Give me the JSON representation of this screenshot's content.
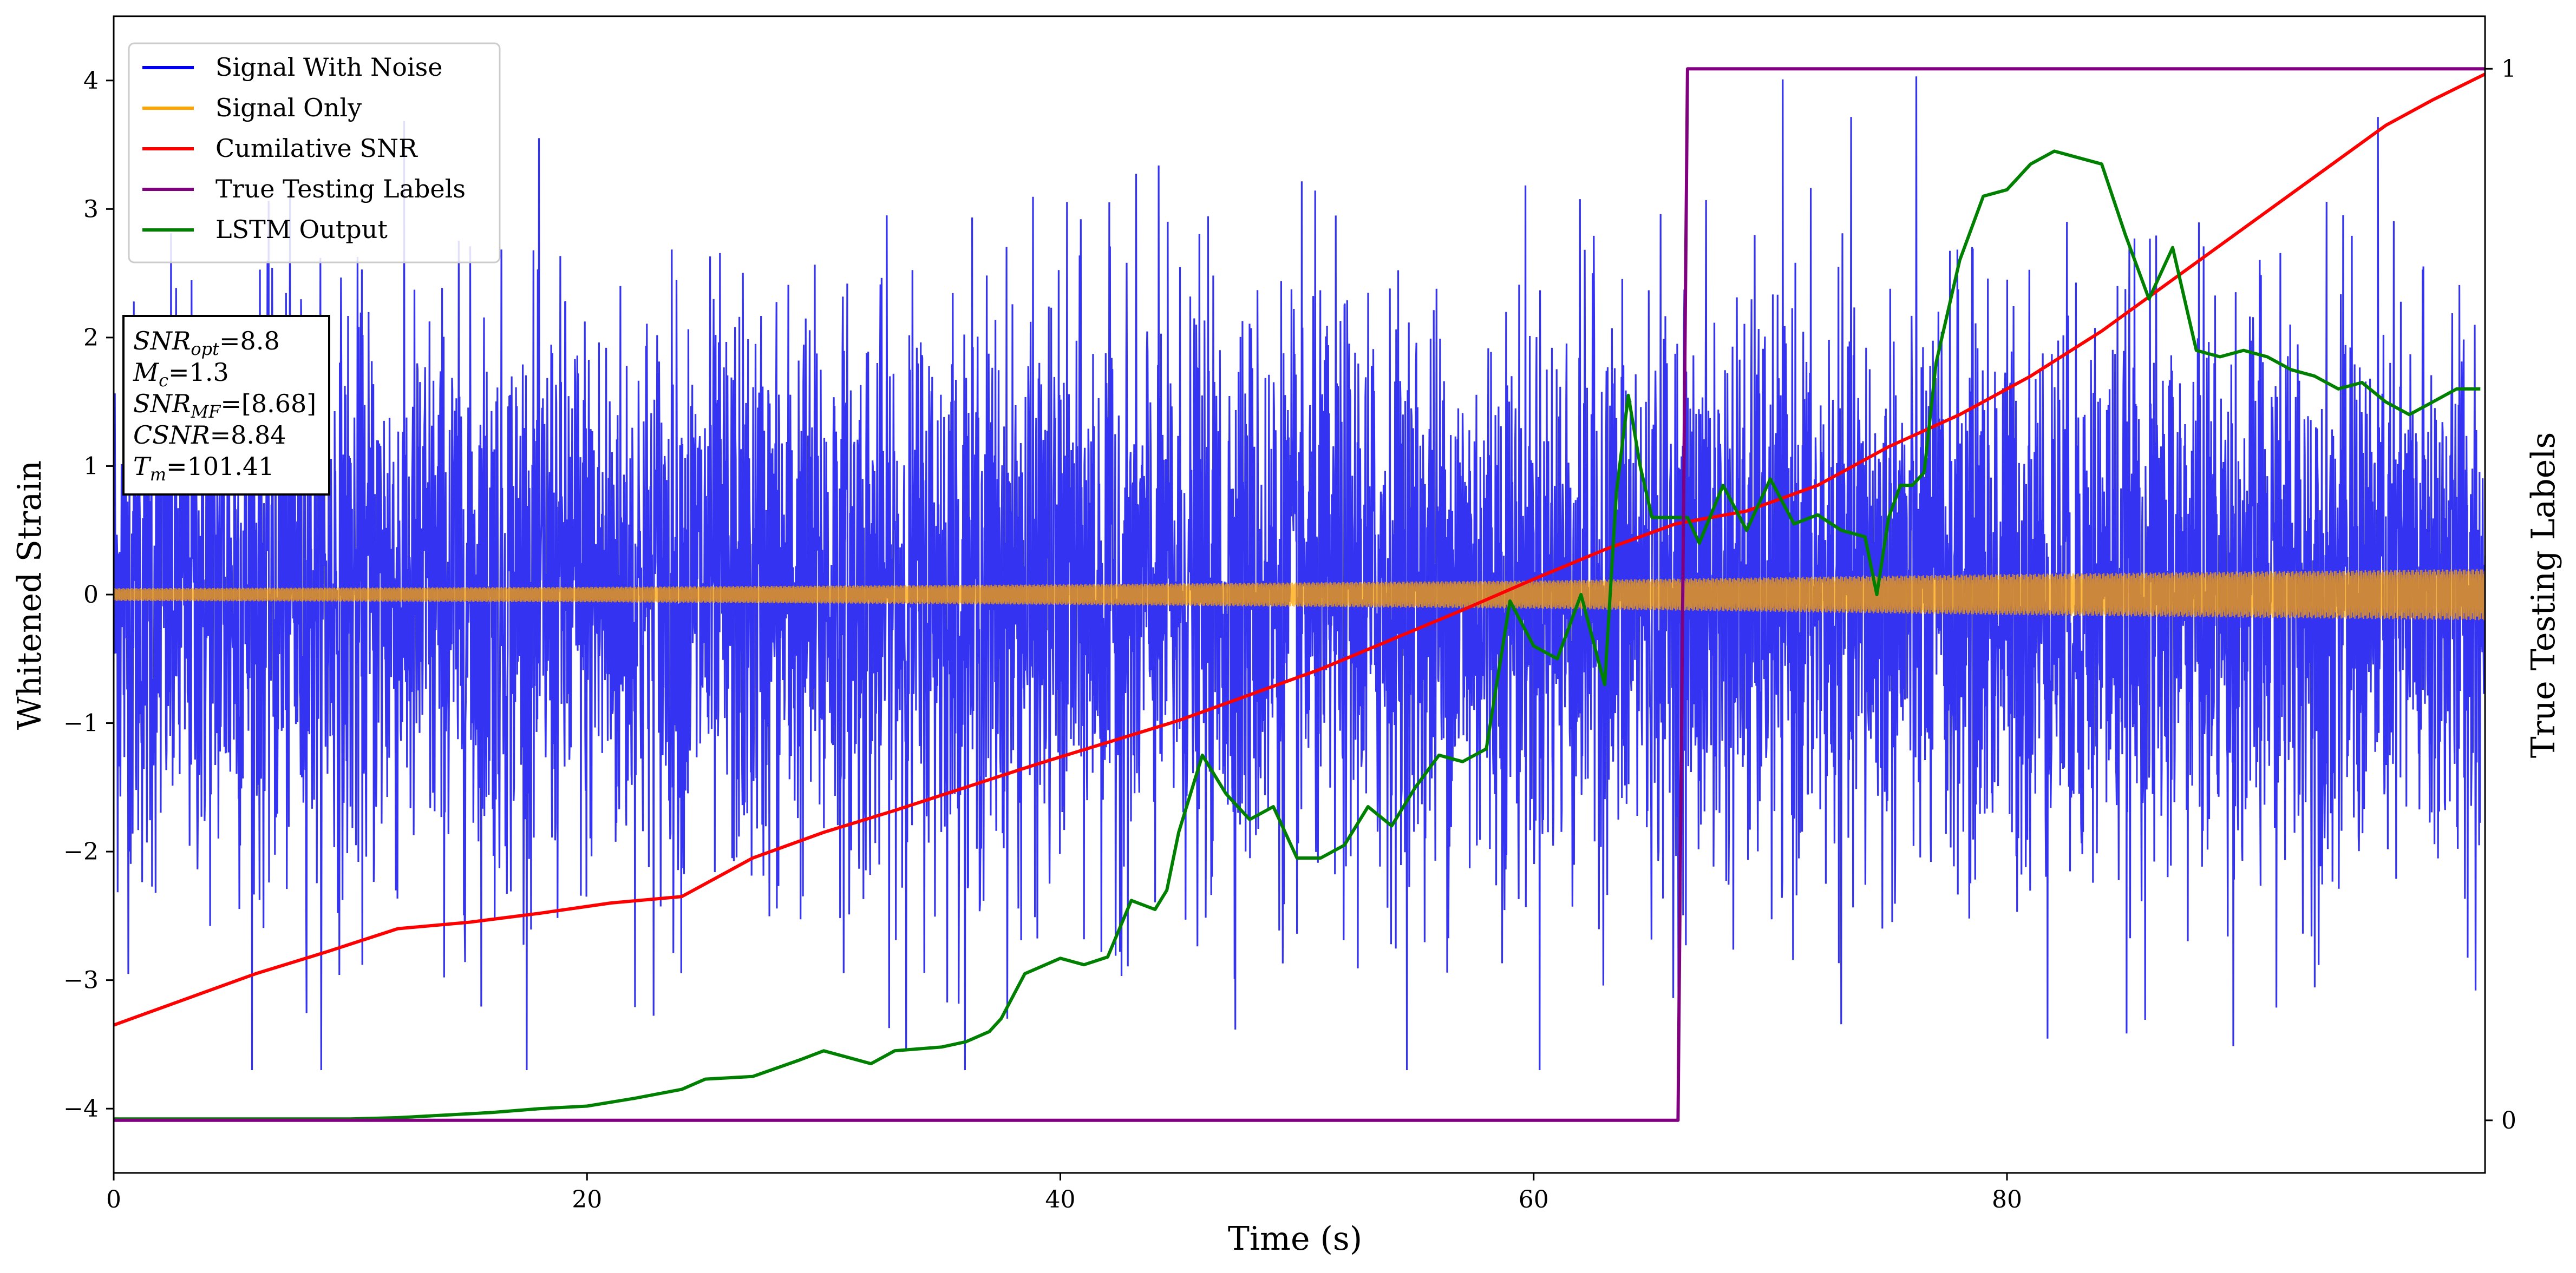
{
  "chart_data": {
    "type": "line",
    "xlabel": "Time (s)",
    "ylabel": "Whitened Strain",
    "y2label": "True Testing Labels",
    "xlim": [
      0,
      100.2
    ],
    "ylim": [
      -4.5,
      4.5
    ],
    "y2lim": [
      -0.05,
      1.05
    ],
    "x_ticks": [
      0,
      20,
      40,
      60,
      80
    ],
    "y_ticks": [
      -4,
      -3,
      -2,
      -1,
      0,
      1,
      2,
      3,
      4
    ],
    "y2_ticks": [
      0,
      1
    ],
    "grid": false,
    "legend_position": "top-left",
    "series": [
      {
        "name": "Signal With Noise",
        "color": "#0000ee",
        "axis": "left",
        "style": "dense noise band",
        "x_range": [
          0,
          100.2
        ],
        "typical_spread": [
          -1.8,
          1.8
        ],
        "extremes": [
          -3.7,
          4.1
        ]
      },
      {
        "name": "Signal Only",
        "color": "#ffa500",
        "axis": "left",
        "style": "oscillating band",
        "x": [
          0,
          20,
          40,
          60,
          80,
          100
        ],
        "amplitude": [
          0.05,
          0.06,
          0.08,
          0.11,
          0.16,
          0.2
        ]
      },
      {
        "name": "Cumilative SNR",
        "color": "#ff0000",
        "axis": "left",
        "x": [
          0,
          3,
          6,
          9,
          12,
          15,
          18,
          21,
          24,
          27,
          30,
          33,
          36,
          39,
          42,
          45,
          48,
          51,
          54,
          57,
          60,
          63,
          66,
          69,
          72,
          75,
          78,
          81,
          84,
          87,
          90,
          93,
          96,
          98,
          100.2
        ],
        "values": [
          -3.35,
          -3.15,
          -2.95,
          -2.78,
          -2.6,
          -2.55,
          -2.48,
          -2.4,
          -2.35,
          -2.05,
          -1.85,
          -1.68,
          -1.5,
          -1.32,
          -1.15,
          -0.98,
          -0.78,
          -0.58,
          -0.35,
          -0.12,
          0.12,
          0.35,
          0.55,
          0.65,
          0.85,
          1.15,
          1.4,
          1.7,
          2.05,
          2.45,
          2.85,
          3.25,
          3.65,
          3.85,
          4.05
        ]
      },
      {
        "name": "True Testing Labels",
        "color": "#800080",
        "axis": "right",
        "x": [
          0,
          66.1,
          66.5,
          100.2
        ],
        "values": [
          0,
          0,
          1,
          1
        ]
      },
      {
        "name": "LSTM Output",
        "color": "#008000",
        "axis": "left",
        "x": [
          0,
          10,
          12,
          14,
          16,
          18,
          20,
          22,
          24,
          25,
          27,
          29,
          30,
          31,
          32,
          33,
          35,
          36,
          37,
          37.5,
          38.5,
          40,
          41,
          42,
          43,
          44,
          44.5,
          45,
          46,
          47,
          48,
          49,
          50,
          51,
          52,
          53,
          54,
          55,
          56,
          57,
          58,
          59,
          60,
          61,
          62,
          63,
          63.5,
          64,
          64.5,
          65,
          66,
          66.5,
          67,
          68,
          69,
          70,
          71,
          72,
          73,
          74,
          74.5,
          75,
          75.5,
          76,
          76.5,
          77,
          78,
          79,
          80,
          81,
          82,
          83,
          84,
          85,
          86,
          87,
          88,
          89,
          90,
          91,
          92,
          93,
          94,
          95,
          96,
          97,
          98,
          99,
          100
        ],
        "values": [
          -4.08,
          -4.08,
          -4.07,
          -4.05,
          -4.03,
          -4.0,
          -3.98,
          -3.92,
          -3.85,
          -3.77,
          -3.75,
          -3.62,
          -3.55,
          -3.6,
          -3.65,
          -3.55,
          -3.52,
          -3.48,
          -3.4,
          -3.3,
          -2.95,
          -2.83,
          -2.88,
          -2.82,
          -2.38,
          -2.45,
          -2.3,
          -1.85,
          -1.25,
          -1.55,
          -1.75,
          -1.65,
          -2.05,
          -2.05,
          -1.95,
          -1.65,
          -1.8,
          -1.5,
          -1.25,
          -1.3,
          -1.2,
          -0.05,
          -0.4,
          -0.5,
          -0.0,
          -0.7,
          0.8,
          1.55,
          1.0,
          0.6,
          0.6,
          0.6,
          0.4,
          0.85,
          0.5,
          0.9,
          0.55,
          0.62,
          0.5,
          0.45,
          0.0,
          0.6,
          0.85,
          0.85,
          0.95,
          1.8,
          2.6,
          3.1,
          3.15,
          3.35,
          3.45,
          3.4,
          3.35,
          2.8,
          2.3,
          2.7,
          1.9,
          1.85,
          1.9,
          1.85,
          1.75,
          1.7,
          1.6,
          1.65,
          1.5,
          1.4,
          1.5,
          1.6,
          1.6
        ]
      }
    ]
  },
  "info_box": [
    {
      "base": "SNR",
      "sub": "opt",
      "value": "=8.8"
    },
    {
      "base": "M",
      "sub": "c",
      "value": "=1.3"
    },
    {
      "base": "SNR",
      "sub": "MF",
      "value": "=[8.68]"
    },
    {
      "base": "CSNR",
      "sub": "",
      "value": "=8.84"
    },
    {
      "base": "T",
      "sub": "m",
      "value": "=101.41"
    }
  ]
}
